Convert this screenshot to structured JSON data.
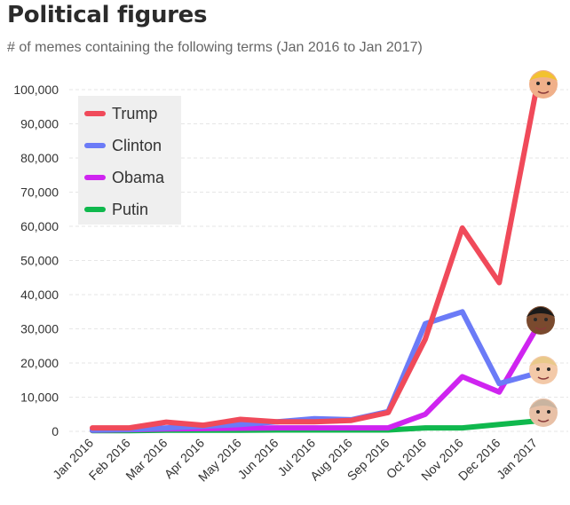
{
  "chart_data": {
    "type": "line",
    "title": "Political figures",
    "subtitle": "# of memes containing the following terms (Jan 2016 to Jan 2017)",
    "xlabel": "",
    "ylabel": "",
    "categories": [
      "Jan 2016",
      "Feb 2016",
      "Mar 2016",
      "Apr 2016",
      "May 2016",
      "Jun 2016",
      "Jul 2016",
      "Aug 2016",
      "Sep 2016",
      "Oct 2016",
      "Nov 2016",
      "Dec 2016",
      "Jan 2017"
    ],
    "ylim": [
      0,
      100000
    ],
    "yticks": [
      0,
      10000,
      20000,
      30000,
      40000,
      50000,
      60000,
      70000,
      80000,
      90000,
      100000
    ],
    "ytick_labels": [
      "0",
      "10,000",
      "20,000",
      "30,000",
      "40,000",
      "50,000",
      "60,000",
      "70,000",
      "80,000",
      "90,000",
      "100,000"
    ],
    "grid": "horizontal dashed",
    "legend_position": "top-left",
    "series": [
      {
        "name": "Trump",
        "color": "#f04a5a",
        "icon": "trump-face-icon",
        "values": [
          1000,
          1000,
          2700,
          1800,
          3500,
          2800,
          2800,
          3200,
          5500,
          27000,
          59500,
          43500,
          100000
        ]
      },
      {
        "name": "Clinton",
        "color": "#6b7bf7",
        "icon": "clinton-face-icon",
        "values": [
          400,
          600,
          1000,
          1500,
          2000,
          2800,
          3700,
          3400,
          5800,
          31500,
          35000,
          14000,
          17000
        ]
      },
      {
        "name": "Obama",
        "color": "#cf24f0",
        "icon": "obama-face-icon",
        "values": [
          300,
          500,
          700,
          800,
          900,
          1000,
          1000,
          1000,
          1000,
          5000,
          16000,
          11500,
          30000
        ]
      },
      {
        "name": "Putin",
        "color": "#0fb84d",
        "icon": "putin-face-icon",
        "values": [
          200,
          200,
          300,
          300,
          300,
          400,
          400,
          400,
          400,
          1000,
          1000,
          2000,
          3000
        ]
      }
    ]
  }
}
